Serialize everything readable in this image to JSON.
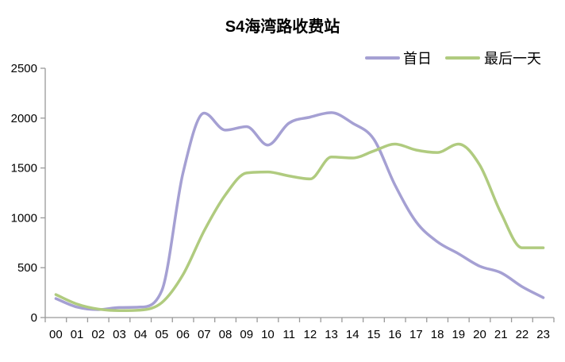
{
  "title": "S4海湾路收费站",
  "legend": {
    "position": "top-right",
    "items": [
      {
        "label": "首日",
        "color": "#a5a0d3"
      },
      {
        "label": "最后一天",
        "color": "#b0cb7f"
      }
    ]
  },
  "chart_data": {
    "type": "line",
    "title": "S4海湾路收费站",
    "xlabel": "",
    "ylabel": "",
    "x": [
      "00",
      "01",
      "02",
      "03",
      "04",
      "05",
      "06",
      "07",
      "08",
      "09",
      "10",
      "11",
      "12",
      "13",
      "14",
      "15",
      "16",
      "17",
      "18",
      "19",
      "20",
      "21",
      "22",
      "23"
    ],
    "series": [
      {
        "name": "首日",
        "color": "#a5a0d3",
        "values": [
          190,
          105,
          80,
          100,
          105,
          270,
          1450,
          2050,
          1880,
          1915,
          1730,
          1950,
          2010,
          2055,
          1950,
          1790,
          1330,
          960,
          760,
          640,
          515,
          450,
          310,
          200
        ]
      },
      {
        "name": "最后一天",
        "color": "#b0cb7f",
        "values": [
          230,
          135,
          85,
          70,
          75,
          150,
          430,
          870,
          1230,
          1450,
          1460,
          1420,
          1390,
          1610,
          1600,
          1670,
          1740,
          1680,
          1655,
          1740,
          1530,
          1050,
          700,
          700
        ]
      }
    ],
    "ylim": [
      0,
      2500
    ],
    "yticks": [
      0,
      500,
      1000,
      1500,
      2000,
      2500
    ],
    "grid": false,
    "smooth": true,
    "legend_position": "top-right",
    "axis_color": "#999999",
    "text_color": "#000000"
  }
}
